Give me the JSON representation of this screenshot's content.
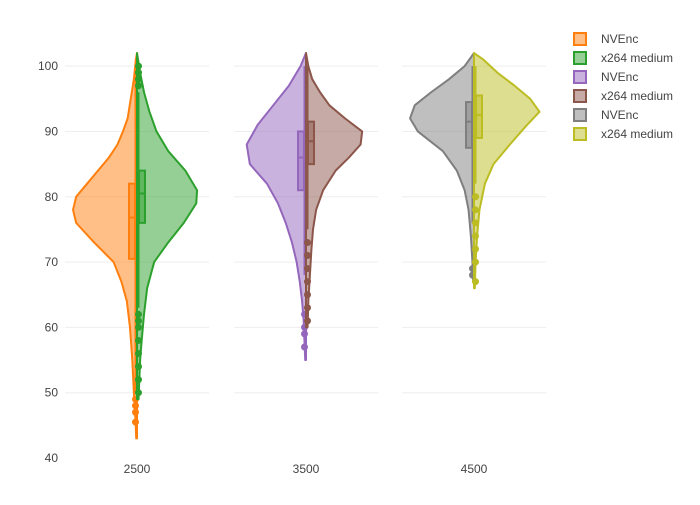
{
  "chart_data": {
    "type": "split-violin",
    "categories": [
      "2500",
      "3500",
      "4500"
    ],
    "ylim": [
      40,
      104
    ],
    "yticks": [
      40,
      50,
      60,
      70,
      80,
      90,
      100
    ],
    "grid": true,
    "legend_position": "top-right",
    "series": [
      {
        "name": "NVEnc",
        "category": "2500",
        "side": "negative",
        "color": "#ff7f0e",
        "range": [
          43,
          102
        ],
        "density": [
          [
            43,
            0.01
          ],
          [
            46,
            0.02
          ],
          [
            50,
            0.04
          ],
          [
            55,
            0.06
          ],
          [
            60,
            0.09
          ],
          [
            64,
            0.13
          ],
          [
            67,
            0.2
          ],
          [
            70,
            0.3
          ],
          [
            73,
            0.55
          ],
          [
            76,
            0.78
          ],
          [
            78,
            0.82
          ],
          [
            80,
            0.78
          ],
          [
            82,
            0.64
          ],
          [
            84,
            0.5
          ],
          [
            86,
            0.36
          ],
          [
            88,
            0.25
          ],
          [
            90,
            0.18
          ],
          [
            92,
            0.12
          ],
          [
            95,
            0.08
          ],
          [
            98,
            0.04
          ],
          [
            101,
            0.015
          ],
          [
            102,
            0
          ]
        ],
        "box": {
          "q1": 70.5,
          "median": 76.8,
          "q3": 82,
          "lower_fence": 50,
          "upper_fence": 100
        },
        "outliers": [
          45.5,
          47,
          48,
          49
        ]
      },
      {
        "name": "x264 medium",
        "category": "2500",
        "side": "positive",
        "color": "#2ca02c",
        "range": [
          49,
          102
        ],
        "density": [
          [
            49,
            0.02
          ],
          [
            52,
            0.03
          ],
          [
            55,
            0.04
          ],
          [
            58,
            0.06
          ],
          [
            62,
            0.09
          ],
          [
            66,
            0.13
          ],
          [
            70,
            0.22
          ],
          [
            73,
            0.4
          ],
          [
            76,
            0.6
          ],
          [
            79,
            0.76
          ],
          [
            81,
            0.77
          ],
          [
            84,
            0.62
          ],
          [
            87,
            0.4
          ],
          [
            90,
            0.25
          ],
          [
            93,
            0.16
          ],
          [
            96,
            0.09
          ],
          [
            99,
            0.04
          ],
          [
            102,
            0
          ]
        ],
        "box": {
          "q1": 76,
          "median": 80.5,
          "q3": 84,
          "lower_fence": 63,
          "upper_fence": 96
        },
        "outliers": [
          50,
          52,
          54,
          56,
          58,
          60,
          61,
          62,
          97,
          98,
          99,
          100
        ]
      },
      {
        "name": "NVEnc",
        "category": "3500",
        "side": "negative",
        "color": "#9467bd",
        "range": [
          55,
          102
        ],
        "density": [
          [
            55,
            0.01
          ],
          [
            58,
            0.02
          ],
          [
            61,
            0.03
          ],
          [
            64,
            0.05
          ],
          [
            67,
            0.08
          ],
          [
            70,
            0.12
          ],
          [
            73,
            0.18
          ],
          [
            76,
            0.26
          ],
          [
            79,
            0.36
          ],
          [
            82,
            0.5
          ],
          [
            85,
            0.72
          ],
          [
            88,
            0.76
          ],
          [
            91,
            0.62
          ],
          [
            94,
            0.42
          ],
          [
            97,
            0.22
          ],
          [
            100,
            0.07
          ],
          [
            102,
            0
          ]
        ],
        "box": {
          "q1": 81,
          "median": 86,
          "q3": 90,
          "lower_fence": 68,
          "upper_fence": 100
        },
        "outliers": [
          57,
          59,
          60,
          62
        ]
      },
      {
        "name": "x264 medium",
        "category": "3500",
        "side": "positive",
        "color": "#8c564b",
        "range": [
          60,
          102
        ],
        "density": [
          [
            60,
            0.02
          ],
          [
            64,
            0.03
          ],
          [
            68,
            0.05
          ],
          [
            72,
            0.07
          ],
          [
            75,
            0.09
          ],
          [
            78,
            0.13
          ],
          [
            81,
            0.22
          ],
          [
            84,
            0.38
          ],
          [
            86,
            0.55
          ],
          [
            88,
            0.7
          ],
          [
            90,
            0.72
          ],
          [
            92,
            0.5
          ],
          [
            94,
            0.3
          ],
          [
            96,
            0.18
          ],
          [
            98,
            0.08
          ],
          [
            100,
            0.03
          ],
          [
            102,
            0
          ]
        ],
        "box": {
          "q1": 85,
          "median": 88.5,
          "q3": 91.5,
          "lower_fence": 75,
          "upper_fence": 100
        },
        "outliers": [
          61,
          63,
          65,
          67,
          69,
          71,
          73
        ]
      },
      {
        "name": "NVEnc",
        "category": "4500",
        "side": "negative",
        "color": "#7f7f7f",
        "range": [
          67,
          102
        ],
        "density": [
          [
            67,
            0.01
          ],
          [
            70,
            0.02
          ],
          [
            74,
            0.04
          ],
          [
            78,
            0.07
          ],
          [
            81,
            0.12
          ],
          [
            84,
            0.22
          ],
          [
            87,
            0.4
          ],
          [
            90,
            0.72
          ],
          [
            92,
            0.82
          ],
          [
            94,
            0.76
          ],
          [
            96,
            0.55
          ],
          [
            98,
            0.32
          ],
          [
            100,
            0.12
          ],
          [
            102,
            0
          ]
        ],
        "box": {
          "q1": 87.5,
          "median": 91.5,
          "q3": 94.5,
          "lower_fence": 76,
          "upper_fence": 100
        },
        "outliers": [
          68,
          69
        ]
      },
      {
        "name": "x264 medium",
        "category": "4500",
        "side": "positive",
        "color": "#bcbd22",
        "range": [
          66,
          102
        ],
        "density": [
          [
            66,
            0.01
          ],
          [
            70,
            0.02
          ],
          [
            74,
            0.04
          ],
          [
            78,
            0.07
          ],
          [
            82,
            0.14
          ],
          [
            85,
            0.25
          ],
          [
            88,
            0.46
          ],
          [
            91,
            0.68
          ],
          [
            93,
            0.84
          ],
          [
            95,
            0.72
          ],
          [
            97,
            0.52
          ],
          [
            99,
            0.3
          ],
          [
            101,
            0.12
          ],
          [
            102,
            0
          ]
        ],
        "box": {
          "q1": 89,
          "median": 92.5,
          "q3": 95.5,
          "lower_fence": 82,
          "upper_fence": 100
        },
        "outliers": [
          67,
          70,
          72,
          74,
          76,
          78,
          80
        ]
      }
    ]
  }
}
